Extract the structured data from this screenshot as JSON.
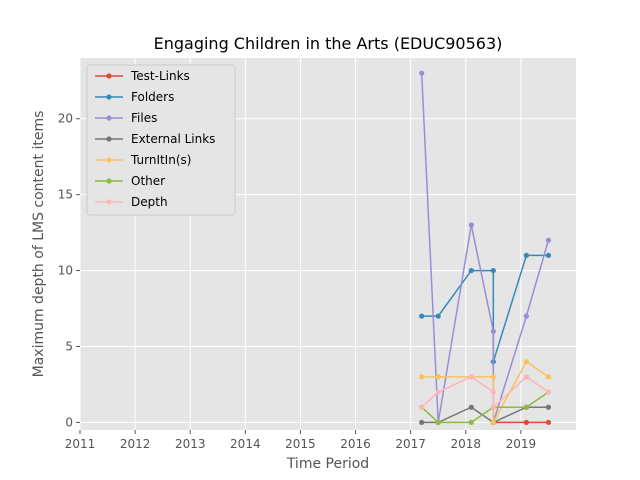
{
  "chart_data": {
    "type": "line",
    "title": "Engaging Children in the Arts (EDUC90563)",
    "xlabel": "Time Period",
    "ylabel": "Maximum depth of LMS content items",
    "xlim": [
      2011,
      2020
    ],
    "ylim": [
      -0.5,
      24
    ],
    "xticks": [
      2011,
      2012,
      2013,
      2014,
      2015,
      2016,
      2017,
      2018,
      2019
    ],
    "yticks": [
      0,
      5,
      10,
      15,
      20
    ],
    "grid": true,
    "legend_position": "top-left",
    "x": [
      2017.2,
      2017.5,
      2018.1,
      2018.5,
      2018.5,
      2019.1,
      2019.5
    ],
    "series": [
      {
        "name": "Test-Links",
        "color": "#E24A33",
        "values": [
          null,
          null,
          null,
          0,
          0,
          0,
          0
        ]
      },
      {
        "name": "Folders",
        "color": "#348ABD",
        "values": [
          7,
          7,
          10,
          10,
          4,
          11,
          11
        ]
      },
      {
        "name": "Files",
        "color": "#988ED5",
        "values": [
          23,
          0,
          13,
          6,
          0,
          7,
          12
        ]
      },
      {
        "name": "External Links",
        "color": "#777777",
        "values": [
          0,
          0,
          1,
          0,
          0,
          1,
          1
        ]
      },
      {
        "name": "TurnItIn(s)",
        "color": "#FBC15E",
        "values": [
          3,
          3,
          3,
          3,
          0,
          4,
          3
        ]
      },
      {
        "name": "Other",
        "color": "#8EBA42",
        "values": [
          1,
          0,
          0,
          1,
          1,
          1,
          2
        ]
      },
      {
        "name": "Depth",
        "color": "#FFB5B8",
        "values": [
          1,
          2,
          3,
          2,
          1,
          3,
          2
        ]
      }
    ]
  }
}
